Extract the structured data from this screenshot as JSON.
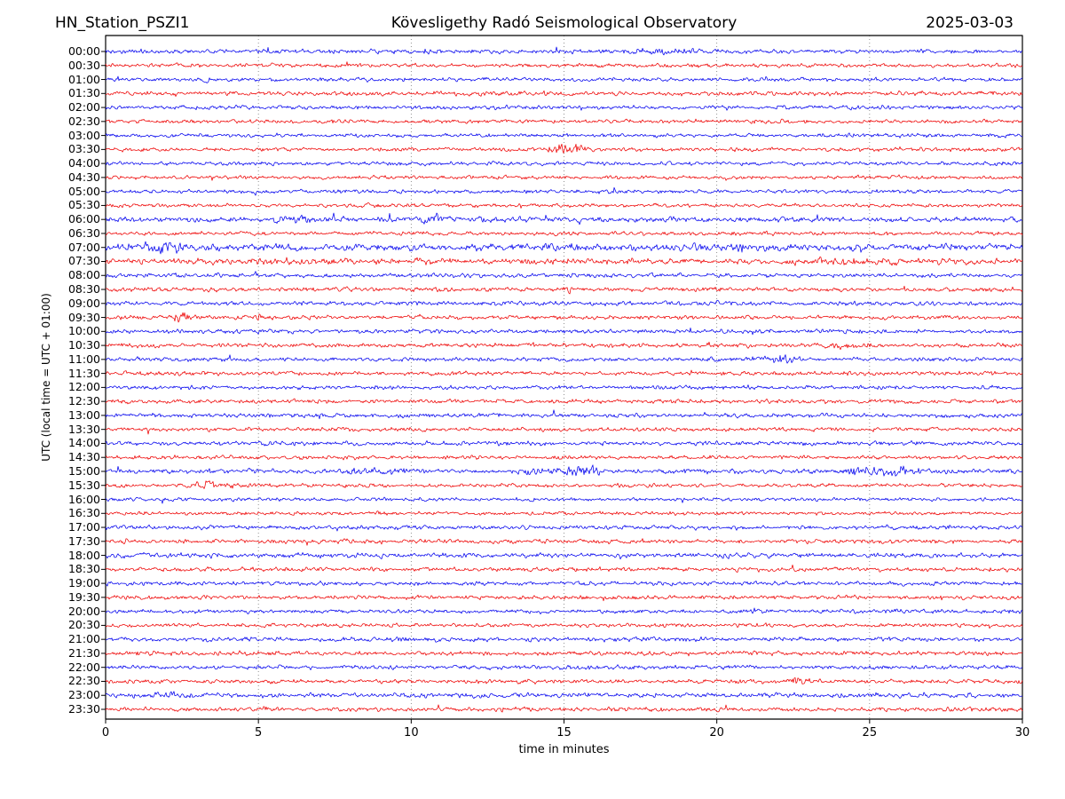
{
  "header": {
    "station": "HN_Station_PSZI1",
    "observatory": "Kövesligethy Radó Seismological Observatory",
    "date": "2025-03-03"
  },
  "chart_data": {
    "type": "line",
    "variant": "helicorder-day-plot",
    "title": "Kövesligethy Radó Seismological Observatory",
    "station": "HN_Station_PSZI1",
    "date": "2025-03-03",
    "x_axis": {
      "label": "time in minutes",
      "ticks": [
        0,
        5,
        10,
        15,
        20,
        25,
        30
      ],
      "range": [
        0,
        30
      ],
      "grid": "dotted-vertical"
    },
    "y_axis": {
      "label": "UTC (local time = UTC + 01:00)",
      "direction": "time increases downward"
    },
    "minutes_per_row": 30,
    "palette": {
      "blue": "#0000ee",
      "red": "#ee0000",
      "grid": "#777777",
      "frame": "#000000"
    },
    "rows": [
      {
        "label": "00:00",
        "color": "blue",
        "amp": 1.0,
        "events": [
          [
            18.0,
            0.8,
            0.9
          ]
        ]
      },
      {
        "label": "00:30",
        "color": "red",
        "amp": 0.9,
        "events": []
      },
      {
        "label": "01:00",
        "color": "blue",
        "amp": 0.9,
        "events": [
          [
            3.3,
            0.15,
            1.5
          ]
        ]
      },
      {
        "label": "01:30",
        "color": "red",
        "amp": 1.0,
        "events": []
      },
      {
        "label": "02:00",
        "color": "blue",
        "amp": 0.95,
        "events": []
      },
      {
        "label": "02:30",
        "color": "red",
        "amp": 0.9,
        "events": []
      },
      {
        "label": "03:00",
        "color": "blue",
        "amp": 0.9,
        "events": []
      },
      {
        "label": "03:30",
        "color": "red",
        "amp": 0.9,
        "events": [
          [
            15.1,
            0.5,
            2.0
          ]
        ]
      },
      {
        "label": "04:00",
        "color": "blue",
        "amp": 0.9,
        "events": []
      },
      {
        "label": "04:30",
        "color": "red",
        "amp": 0.85,
        "events": []
      },
      {
        "label": "05:00",
        "color": "blue",
        "amp": 0.9,
        "events": [
          [
            16.6,
            0.25,
            1.5
          ]
        ]
      },
      {
        "label": "05:30",
        "color": "red",
        "amp": 0.85,
        "events": []
      },
      {
        "label": "06:00",
        "color": "blue",
        "amp": 1.25,
        "events": [
          [
            6.2,
            0.5,
            0.8
          ],
          [
            10.7,
            0.3,
            1.3
          ]
        ]
      },
      {
        "label": "06:30",
        "color": "red",
        "amp": 0.9,
        "events": []
      },
      {
        "label": "07:00",
        "color": "blue",
        "amp": 1.65,
        "events": [
          [
            1.9,
            0.5,
            1.2
          ]
        ]
      },
      {
        "label": "07:30",
        "color": "red",
        "amp": 1.4,
        "events": [
          [
            24.5,
            0.8,
            0.7
          ]
        ]
      },
      {
        "label": "08:00",
        "color": "blue",
        "amp": 1.0,
        "events": []
      },
      {
        "label": "08:30",
        "color": "red",
        "amp": 1.0,
        "events": [
          [
            15.2,
            0.08,
            2.0
          ]
        ]
      },
      {
        "label": "09:00",
        "color": "blue",
        "amp": 1.0,
        "events": []
      },
      {
        "label": "09:30",
        "color": "red",
        "amp": 0.95,
        "events": [
          [
            2.5,
            0.25,
            1.8
          ],
          [
            5.0,
            0.07,
            2.0
          ]
        ]
      },
      {
        "label": "10:00",
        "color": "blue",
        "amp": 1.0,
        "events": []
      },
      {
        "label": "10:30",
        "color": "red",
        "amp": 1.0,
        "events": [
          [
            24.0,
            0.4,
            1.0
          ]
        ]
      },
      {
        "label": "11:00",
        "color": "blue",
        "amp": 1.0,
        "events": [
          [
            21.9,
            0.5,
            1.6
          ]
        ]
      },
      {
        "label": "11:30",
        "color": "red",
        "amp": 0.95,
        "events": []
      },
      {
        "label": "12:00",
        "color": "blue",
        "amp": 0.9,
        "events": []
      },
      {
        "label": "12:30",
        "color": "red",
        "amp": 1.0,
        "events": []
      },
      {
        "label": "13:00",
        "color": "blue",
        "amp": 1.05,
        "events": []
      },
      {
        "label": "13:30",
        "color": "red",
        "amp": 0.9,
        "events": []
      },
      {
        "label": "14:00",
        "color": "blue",
        "amp": 1.0,
        "events": []
      },
      {
        "label": "14:30",
        "color": "red",
        "amp": 0.9,
        "events": []
      },
      {
        "label": "15:00",
        "color": "blue",
        "amp": 1.1,
        "events": [
          [
            9.0,
            0.6,
            0.7
          ],
          [
            14.1,
            0.3,
            0.8
          ],
          [
            15.5,
            0.5,
            1.7
          ],
          [
            24.5,
            0.4,
            1.1
          ],
          [
            26.0,
            0.5,
            1.5
          ]
        ]
      },
      {
        "label": "15:30",
        "color": "red",
        "amp": 0.9,
        "events": [
          [
            3.6,
            0.4,
            2.0
          ]
        ]
      },
      {
        "label": "16:00",
        "color": "blue",
        "amp": 0.85,
        "events": [
          [
            5.6,
            0.1,
            1.1
          ]
        ]
      },
      {
        "label": "16:30",
        "color": "red",
        "amp": 0.85,
        "events": []
      },
      {
        "label": "17:00",
        "color": "blue",
        "amp": 1.0,
        "events": []
      },
      {
        "label": "17:30",
        "color": "red",
        "amp": 1.0,
        "events": []
      },
      {
        "label": "18:00",
        "color": "blue",
        "amp": 1.1,
        "events": []
      },
      {
        "label": "18:30",
        "color": "red",
        "amp": 1.0,
        "events": []
      },
      {
        "label": "19:00",
        "color": "blue",
        "amp": 1.0,
        "events": []
      },
      {
        "label": "19:30",
        "color": "red",
        "amp": 0.95,
        "events": []
      },
      {
        "label": "20:00",
        "color": "blue",
        "amp": 0.95,
        "events": [
          [
            21.2,
            0.15,
            1.2
          ]
        ]
      },
      {
        "label": "20:30",
        "color": "red",
        "amp": 0.9,
        "events": []
      },
      {
        "label": "21:00",
        "color": "blue",
        "amp": 1.0,
        "events": [
          [
            9.6,
            0.2,
            1.1
          ]
        ]
      },
      {
        "label": "21:30",
        "color": "red",
        "amp": 1.0,
        "events": []
      },
      {
        "label": "22:00",
        "color": "blue",
        "amp": 1.0,
        "events": []
      },
      {
        "label": "22:30",
        "color": "red",
        "amp": 1.0,
        "events": [
          [
            22.7,
            0.25,
            1.5
          ]
        ]
      },
      {
        "label": "23:00",
        "color": "blue",
        "amp": 1.1,
        "events": [
          [
            2.1,
            0.3,
            1.4
          ]
        ]
      },
      {
        "label": "23:30",
        "color": "red",
        "amp": 1.0,
        "events": [
          [
            5.2,
            0.1,
            1.6
          ]
        ]
      }
    ]
  }
}
